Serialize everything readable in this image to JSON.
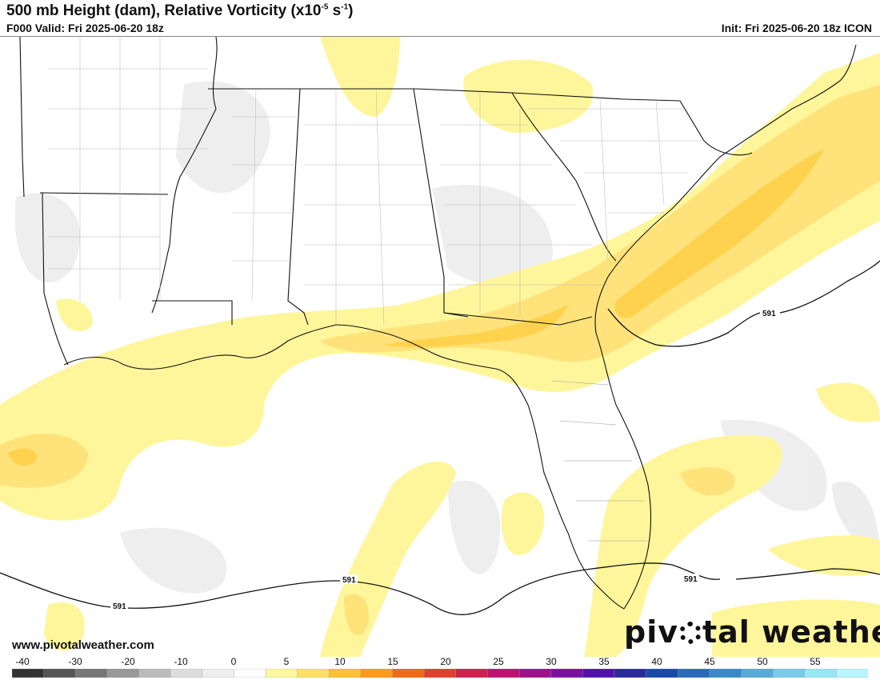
{
  "header": {
    "title_main": "500 mb Height (dam), Relative Vorticity (x10",
    "title_exp": "-5",
    "title_unit": " s",
    "title_unit_exp": "-1",
    "title_close": ")",
    "valid": "F000 Valid: Fri 2025-06-20 18z",
    "init": "Init: Fri 2025-06-20 18z ICON"
  },
  "map": {
    "contour_label": "591",
    "colors": {
      "land": "#ffffff",
      "water": "#ffffff",
      "negative_light": "#e9e9e9",
      "vort_low": "#fff59a",
      "vort_mid": "#ffe070",
      "vort_high": "#ffd04a",
      "border": "#111111"
    }
  },
  "footer": {
    "website": "www.pivotalweather.com",
    "brand_pre": "piv",
    "brand_post": "tal weather"
  },
  "colorbar": {
    "ticks": [
      "-40",
      "-30",
      "-20",
      "-10",
      "0",
      "5",
      "10",
      "15",
      "20",
      "25",
      "30",
      "35",
      "40",
      "45",
      "50",
      "55"
    ],
    "colors": [
      "#333333",
      "#555555",
      "#777777",
      "#999999",
      "#bbbbbb",
      "#dddddd",
      "#eeeeee",
      "#ffffff",
      "#fff7a0",
      "#ffe066",
      "#ffc233",
      "#ff9a1a",
      "#f06a1a",
      "#e04030",
      "#d02050",
      "#c01070",
      "#a0108a",
      "#7a10a0",
      "#5010b0",
      "#2a2a9a",
      "#1a4aa8",
      "#2a6ab8",
      "#3a8ac8",
      "#5aaad8",
      "#7acae8",
      "#9ae6f4",
      "#baf4fc"
    ]
  }
}
